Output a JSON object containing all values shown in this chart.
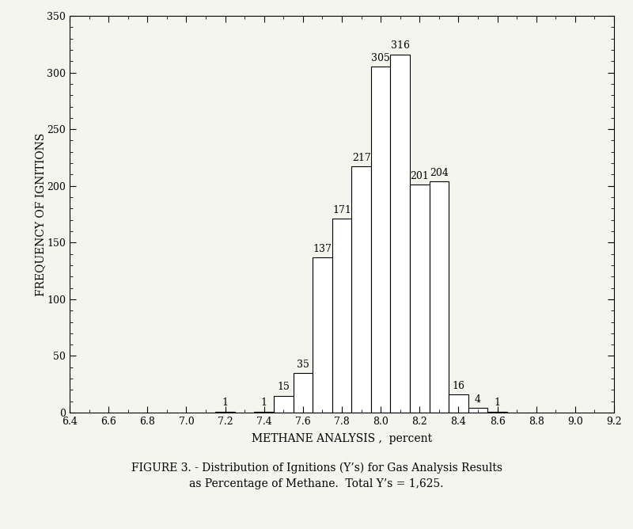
{
  "bin_centers": [
    7.2,
    7.4,
    7.5,
    7.6,
    7.7,
    7.8,
    7.9,
    8.0,
    8.1,
    8.2,
    8.3,
    8.4,
    8.5,
    8.6
  ],
  "counts": [
    1,
    1,
    15,
    35,
    137,
    171,
    217,
    305,
    316,
    201,
    204,
    16,
    4,
    1
  ],
  "bar_color": "#ffffff",
  "bar_edgecolor": "#000000",
  "xlim": [
    6.4,
    9.2
  ],
  "ylim": [
    0,
    350
  ],
  "xticks": [
    6.4,
    6.6,
    6.8,
    7.0,
    7.2,
    7.4,
    7.6,
    7.8,
    8.0,
    8.2,
    8.4,
    8.6,
    8.8,
    9.0,
    9.2
  ],
  "yticks": [
    0,
    50,
    100,
    150,
    200,
    250,
    300,
    350
  ],
  "xlabel": "METHANE ANALYSIS ,  percent",
  "ylabel": "FREQUENCY OF IGNITIONS",
  "caption_line1": "FIGURE 3. - Distribution of Ignitions (Y’s) for Gas Analysis Results",
  "caption_line2": "as Percentage of Methane.  Total Y’s = 1,625.",
  "bar_width": 0.1,
  "background_color": "#f5f5f0",
  "label_fontsize": 10,
  "tick_fontsize": 9,
  "caption_fontsize": 10
}
